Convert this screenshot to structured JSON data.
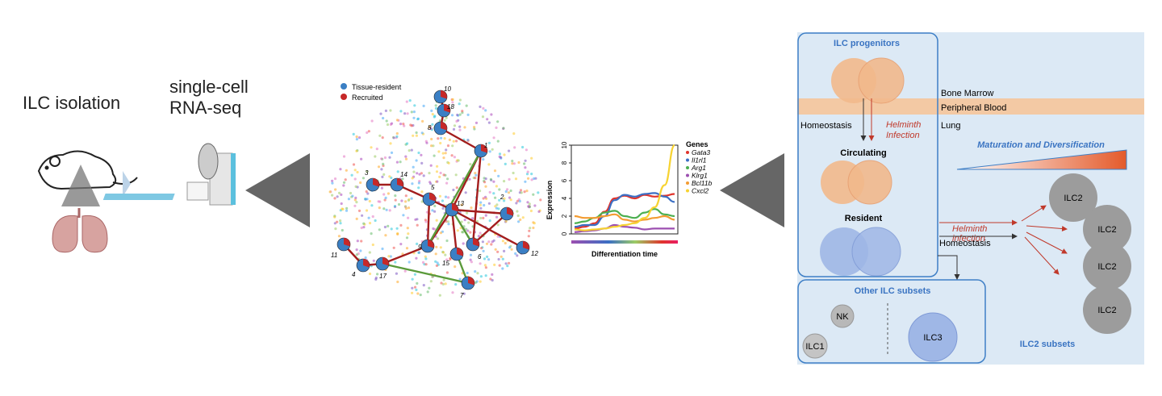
{
  "left": {
    "isolation_label": "ILC isolation",
    "scrnaseq_line1": "single-cell",
    "scrnaseq_line2": "RNA-seq"
  },
  "network": {
    "legend": [
      {
        "label": "Tissue-resident",
        "color": "#3b7fc4"
      },
      {
        "label": "Recruited",
        "color": "#c62828"
      }
    ],
    "node_labels": [
      "10",
      "18",
      "8",
      "1",
      "3",
      "14",
      "5",
      "13",
      "2",
      "12",
      "11",
      "4",
      "17",
      "9",
      "15",
      "6",
      "7"
    ]
  },
  "chart_data": {
    "type": "line",
    "xlabel": "Differentiation time",
    "ylabel": "Expression",
    "ylim": [
      0,
      10
    ],
    "yticks": [
      0,
      2,
      4,
      6,
      8,
      10
    ],
    "legend_title": "Genes",
    "x": [
      0,
      1,
      2,
      3,
      4,
      5,
      6,
      7,
      8,
      9,
      10
    ],
    "series": [
      {
        "name": "Gata3",
        "color": "#e0342c",
        "values": [
          0.6,
          0.8,
          1.2,
          2.5,
          4.0,
          4.3,
          4.0,
          4.4,
          4.2,
          4.3,
          4.5
        ]
      },
      {
        "name": "Il1rl1",
        "color": "#3b6fc4",
        "values": [
          0.8,
          1.0,
          1.0,
          2.0,
          3.8,
          4.4,
          4.2,
          4.5,
          4.6,
          4.2,
          3.6
        ]
      },
      {
        "name": "Arg1",
        "color": "#4caf50",
        "values": [
          1.2,
          1.4,
          1.8,
          2.4,
          2.6,
          2.0,
          1.8,
          2.4,
          2.8,
          2.2,
          2.0
        ]
      },
      {
        "name": "Klrg1",
        "color": "#9c4fb0",
        "values": [
          0.2,
          0.3,
          0.4,
          0.6,
          1.0,
          0.8,
          0.7,
          0.5,
          0.6,
          0.6,
          0.6
        ]
      },
      {
        "name": "Bcl11b",
        "color": "#f39c32",
        "values": [
          2.0,
          1.8,
          1.8,
          2.0,
          2.2,
          1.6,
          1.4,
          1.6,
          1.8,
          2.0,
          1.6
        ]
      },
      {
        "name": "Cxcl2",
        "color": "#f7d332",
        "values": [
          0.5,
          0.4,
          0.5,
          0.6,
          0.8,
          1.0,
          1.2,
          1.8,
          3.0,
          5.5,
          10.0
        ]
      }
    ]
  },
  "schematic": {
    "progenitors": "ILC progenitors",
    "bone_marrow": "Bone Marrow",
    "peripheral_blood": "Peripheral Blood",
    "lung": "Lung",
    "homeostasis": "Homeostasis",
    "helminth_infection_l1": "Helminth",
    "helminth_infection_l2": "Infection",
    "circulating": "Circulating",
    "resident": "Resident",
    "maturation": "Maturation and Diversification",
    "helminth2_l1": "Helminth",
    "helminth2_l2": "infection",
    "homeostasis2": "Homeostasis",
    "other_subsets": "Other ILC subsets",
    "nk": "NK",
    "ilc1": "ILC1",
    "ilc3": "ILC3",
    "ilc2_labels": [
      "ILC2",
      "ILC2",
      "ILC2",
      "ILC2"
    ],
    "ilc2_subsets": "ILC2 subsets",
    "colors": {
      "panel_bg": "#dce9f5",
      "panel_border": "#3e7fc6",
      "blood_band": "#f3c9a4",
      "orange_cell": "#f2b98c",
      "blue_cell": "#9fb7e6",
      "title_blue": "#3a74c2",
      "red_text": "#c0392b"
    }
  }
}
